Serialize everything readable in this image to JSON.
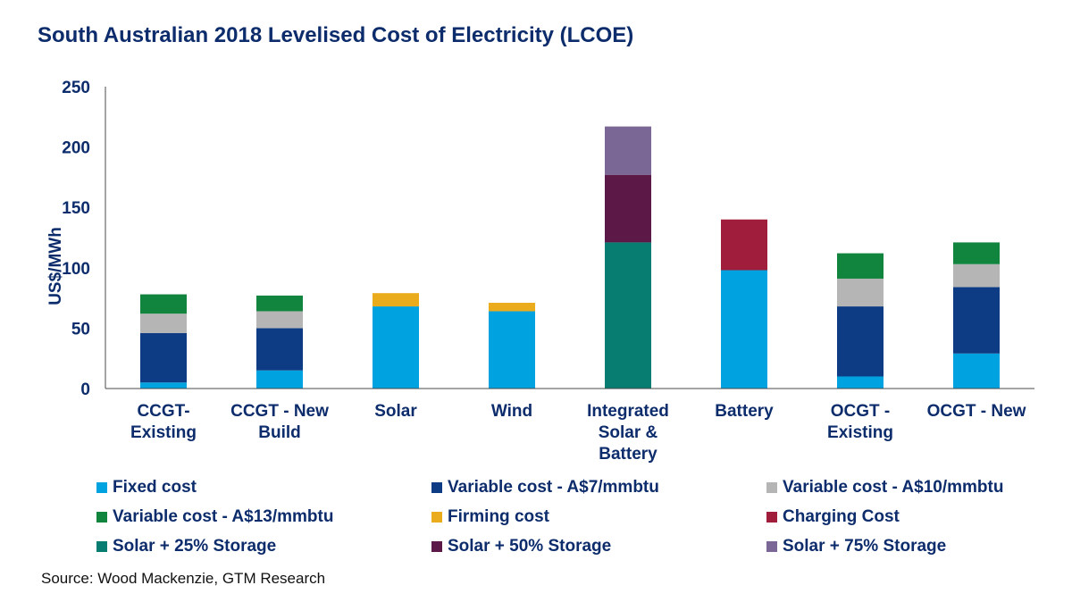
{
  "chart_data": {
    "type": "bar",
    "stacked": true,
    "title": "South Australian 2018 Levelised Cost of Electricity (LCOE)",
    "ylabel": "US$/MWh",
    "xlabel": "",
    "ylim": [
      0,
      250
    ],
    "yticks": [
      0,
      50,
      100,
      150,
      200,
      250
    ],
    "grid": false,
    "legend_position": "bottom",
    "categories": [
      [
        "CCGT-",
        "Existing"
      ],
      [
        "CCGT - New",
        "Build"
      ],
      [
        "Solar"
      ],
      [
        "Wind"
      ],
      [
        "Integrated",
        "Solar &",
        "Battery"
      ],
      [
        "Battery"
      ],
      [
        "OCGT -",
        "Existing"
      ],
      [
        "OCGT - New"
      ]
    ],
    "series": [
      {
        "name": "Fixed cost",
        "color": "#00a3e0",
        "values": [
          5,
          15,
          68,
          64,
          0,
          98,
          10,
          29
        ]
      },
      {
        "name": "Variable cost - A$7/mmbtu",
        "color": "#0d3c85",
        "values": [
          41,
          35,
          0,
          0,
          0,
          0,
          58,
          55
        ]
      },
      {
        "name": "Variable cost - A$10/mmbtu",
        "color": "#b5b5b5",
        "values": [
          16,
          14,
          0,
          0,
          0,
          0,
          23,
          19
        ]
      },
      {
        "name": "Variable cost - A$13/mmbtu",
        "color": "#11843e",
        "values": [
          16,
          13,
          0,
          0,
          0,
          0,
          21,
          18
        ]
      },
      {
        "name": "Firming cost",
        "color": "#eaab1c",
        "values": [
          0,
          0,
          11,
          7,
          0,
          0,
          0,
          0
        ]
      },
      {
        "name": "Charging Cost",
        "color": "#a11d3c",
        "values": [
          0,
          0,
          0,
          0,
          0,
          42,
          0,
          0
        ]
      },
      {
        "name": "Solar + 25% Storage",
        "color": "#067d70",
        "values": [
          0,
          0,
          0,
          0,
          121,
          0,
          0,
          0
        ]
      },
      {
        "name": "Solar + 50% Storage",
        "color": "#5c1846",
        "values": [
          0,
          0,
          0,
          0,
          56,
          0,
          0,
          0
        ]
      },
      {
        "name": "Solar + 75% Storage",
        "color": "#7b6796",
        "values": [
          0,
          0,
          0,
          0,
          40,
          0,
          0,
          0
        ]
      }
    ]
  },
  "source": "Source: Wood Mackenzie, GTM Research"
}
